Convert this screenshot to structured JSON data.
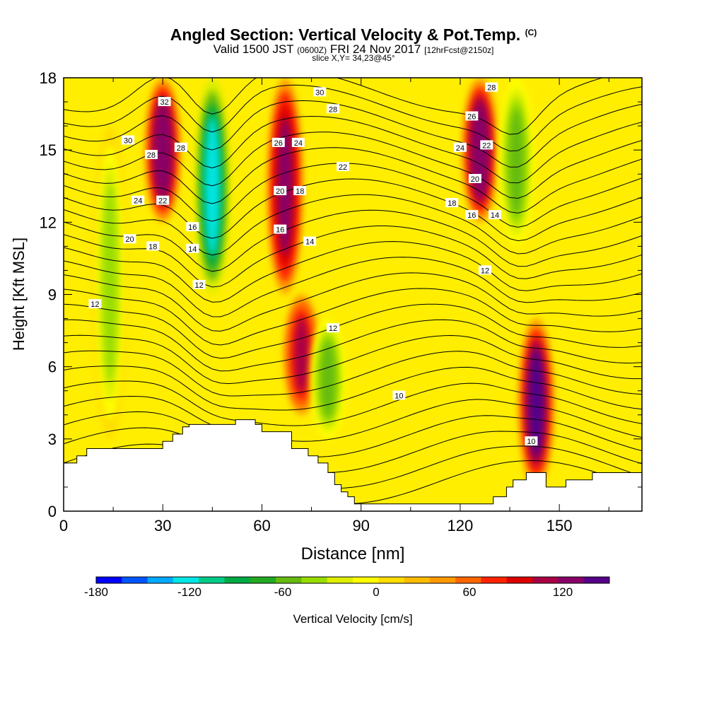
{
  "header": {
    "title": "Angled Section: Vertical Velocity & Pot.Temp.",
    "title_unit": "(C)",
    "valid_prefix": "Valid 1500 JST",
    "valid_utc": "(0600Z)",
    "valid_date": "FRI 24 Nov 2017",
    "forecast": "[12hrFcst@2150z]",
    "slice": "slice X,Y= 34,23@45°"
  },
  "chart_data": {
    "type": "heatmap",
    "xlabel": "Distance [nm]",
    "ylabel": "Height [Kft MSL]",
    "xlim": [
      0,
      175
    ],
    "ylim": [
      0,
      18
    ],
    "x_ticks": [
      0,
      30,
      60,
      90,
      120,
      150
    ],
    "y_ticks": [
      0,
      3,
      6,
      9,
      12,
      15,
      18
    ],
    "colorbar": {
      "label": "Vertical Velocity [cm/s]",
      "min": -180,
      "max": 150,
      "step": 15,
      "tick_labels": [
        -180,
        -120,
        -60,
        0,
        60,
        120
      ],
      "colors": [
        "#0000ff",
        "#0055ff",
        "#00aaff",
        "#00e5e5",
        "#00cc88",
        "#00aa44",
        "#22aa22",
        "#66bb11",
        "#99dd00",
        "#ddee00",
        "#ffff00",
        "#ffdd00",
        "#ffbb00",
        "#ff9900",
        "#ff6600",
        "#ff2200",
        "#dd0000",
        "#aa0044",
        "#880066",
        "#550088"
      ]
    },
    "features": [
      {
        "kind": "updraft",
        "x": 30,
        "y_range": [
          12,
          18
        ],
        "peak": 100
      },
      {
        "kind": "downdraft",
        "x": 45,
        "y_range": [
          9,
          18
        ],
        "peak": -130
      },
      {
        "kind": "updraft",
        "x": 67,
        "y_range": [
          9,
          18
        ],
        "peak": 95
      },
      {
        "kind": "updraft",
        "x": 72,
        "y_range": [
          4,
          9
        ],
        "peak": 75
      },
      {
        "kind": "downdraft",
        "x": 80,
        "y_range": [
          3,
          8
        ],
        "peak": -65
      },
      {
        "kind": "updraft",
        "x": 126,
        "y_range": [
          12,
          18
        ],
        "peak": 100
      },
      {
        "kind": "downdraft",
        "x": 137,
        "y_range": [
          11,
          18
        ],
        "peak": -70
      },
      {
        "kind": "updraft",
        "x": 143,
        "y_range": [
          1,
          8
        ],
        "peak": 110
      },
      {
        "kind": "downdraft",
        "x": 14,
        "y_range": [
          3,
          16
        ],
        "peak": -50
      }
    ],
    "isentrope_labels": [
      {
        "text": "32",
        "x": 30.5,
        "y": 17.0
      },
      {
        "text": "30",
        "x": 19.5,
        "y": 15.4
      },
      {
        "text": "28",
        "x": 26.5,
        "y": 14.8
      },
      {
        "text": "28",
        "x": 35.5,
        "y": 15.1
      },
      {
        "text": "24",
        "x": 22.5,
        "y": 12.9
      },
      {
        "text": "22",
        "x": 30,
        "y": 12.9
      },
      {
        "text": "20",
        "x": 20,
        "y": 11.3
      },
      {
        "text": "18",
        "x": 27,
        "y": 11.0
      },
      {
        "text": "12",
        "x": 9.5,
        "y": 8.6
      },
      {
        "text": "16",
        "x": 39,
        "y": 11.8
      },
      {
        "text": "14",
        "x": 39,
        "y": 10.9
      },
      {
        "text": "12",
        "x": 41,
        "y": 9.4
      },
      {
        "text": "30",
        "x": 77.5,
        "y": 17.4
      },
      {
        "text": "28",
        "x": 81.5,
        "y": 16.7
      },
      {
        "text": "26",
        "x": 65,
        "y": 15.3
      },
      {
        "text": "24",
        "x": 71,
        "y": 15.3
      },
      {
        "text": "22",
        "x": 84.5,
        "y": 14.3
      },
      {
        "text": "20",
        "x": 65.5,
        "y": 13.3
      },
      {
        "text": "18",
        "x": 71.5,
        "y": 13.3
      },
      {
        "text": "16",
        "x": 65.5,
        "y": 11.7
      },
      {
        "text": "14",
        "x": 74.5,
        "y": 11.2
      },
      {
        "text": "12",
        "x": 81.5,
        "y": 7.6
      },
      {
        "text": "10",
        "x": 101.5,
        "y": 4.8
      },
      {
        "text": "28",
        "x": 129.5,
        "y": 17.6
      },
      {
        "text": "26",
        "x": 123.5,
        "y": 16.4
      },
      {
        "text": "24",
        "x": 120,
        "y": 15.1
      },
      {
        "text": "22",
        "x": 128,
        "y": 15.2
      },
      {
        "text": "20",
        "x": 124.5,
        "y": 13.8
      },
      {
        "text": "18",
        "x": 117.5,
        "y": 12.8
      },
      {
        "text": "16",
        "x": 123.5,
        "y": 12.3
      },
      {
        "text": "14",
        "x": 130.5,
        "y": 12.3
      },
      {
        "text": "12",
        "x": 127.5,
        "y": 10.0
      },
      {
        "text": "10",
        "x": 141.5,
        "y": 2.9
      }
    ],
    "terrain": [
      [
        0,
        2.0
      ],
      [
        4,
        2.0
      ],
      [
        4,
        2.3
      ],
      [
        7,
        2.3
      ],
      [
        7,
        2.6
      ],
      [
        30,
        2.6
      ],
      [
        30,
        2.9
      ],
      [
        33,
        2.9
      ],
      [
        33,
        3.2
      ],
      [
        36,
        3.2
      ],
      [
        36,
        3.5
      ],
      [
        38,
        3.5
      ],
      [
        38,
        3.6
      ],
      [
        52,
        3.6
      ],
      [
        52,
        3.8
      ],
      [
        58,
        3.8
      ],
      [
        58,
        3.6
      ],
      [
        60,
        3.6
      ],
      [
        60,
        3.3
      ],
      [
        69,
        3.3
      ],
      [
        69,
        2.6
      ],
      [
        74,
        2.6
      ],
      [
        74,
        2.3
      ],
      [
        77,
        2.3
      ],
      [
        77,
        2.0
      ],
      [
        80,
        2.0
      ],
      [
        80,
        1.6
      ],
      [
        82,
        1.6
      ],
      [
        82,
        1.1
      ],
      [
        84,
        1.1
      ],
      [
        84,
        0.8
      ],
      [
        86,
        0.8
      ],
      [
        86,
        0.6
      ],
      [
        88,
        0.6
      ],
      [
        88,
        0.3
      ],
      [
        130,
        0.3
      ],
      [
        130,
        0.6
      ],
      [
        134,
        0.6
      ],
      [
        134,
        1.0
      ],
      [
        136,
        1.0
      ],
      [
        136,
        1.3
      ],
      [
        140,
        1.3
      ],
      [
        140,
        1.6
      ],
      [
        146,
        1.6
      ],
      [
        146,
        1.0
      ],
      [
        152,
        1.0
      ],
      [
        152,
        1.3
      ],
      [
        160,
        1.3
      ],
      [
        160,
        1.6
      ],
      [
        175,
        1.6
      ]
    ]
  }
}
